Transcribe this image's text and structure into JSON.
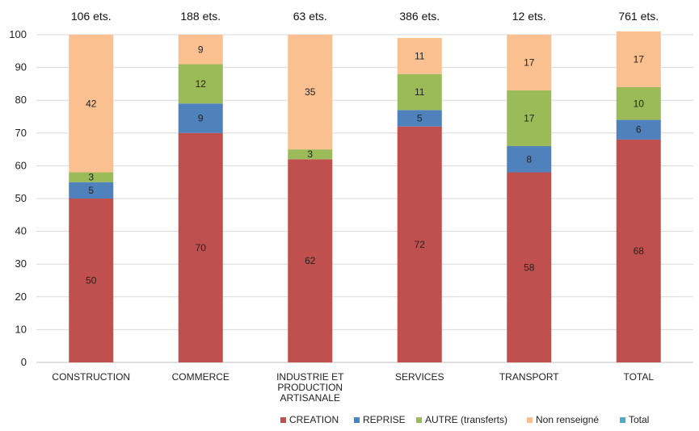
{
  "chart_data": {
    "type": "bar",
    "stacked": true,
    "categories": [
      [
        "CONSTRUCTION"
      ],
      [
        "COMMERCE"
      ],
      [
        "INDUSTRIE ET",
        "PRODUCTION",
        "ARTISANALE"
      ],
      [
        "SERVICES"
      ],
      [
        "TRANSPORT"
      ],
      [
        "TOTAL"
      ]
    ],
    "counts": [
      "106 ets.",
      "188 ets.",
      "63 ets.",
      "386 ets.",
      "12 ets.",
      "761 ets."
    ],
    "series": [
      {
        "name": "CREATION",
        "color": "#C0504D",
        "values": [
          50,
          70,
          62,
          72,
          58,
          68
        ],
        "labels": [
          "50",
          "70",
          "62",
          "72",
          "58",
          "68"
        ]
      },
      {
        "name": "REPRISE",
        "color": "#4F81BD",
        "values": [
          5,
          9,
          0,
          5,
          8,
          6
        ],
        "labels": [
          "5",
          "9",
          "",
          "5",
          "8",
          "6"
        ]
      },
      {
        "name": "AUTRE (transferts)",
        "color": "#9BBB59",
        "values": [
          3,
          12,
          3,
          11,
          17,
          10
        ],
        "labels": [
          "3",
          "12",
          "3",
          "11",
          "17",
          "10"
        ]
      },
      {
        "name": "Non renseigné",
        "color": "#FAC090",
        "values": [
          42,
          9,
          35,
          11,
          17,
          17
        ],
        "labels": [
          "42",
          "9",
          "35",
          "11",
          "17",
          "17"
        ]
      },
      {
        "name": "Total",
        "color": "#4BACC6",
        "values": [
          0,
          0,
          0,
          0,
          0,
          0
        ],
        "labels": [
          "",
          "",
          "",
          "",
          "",
          ""
        ]
      }
    ],
    "ylim": [
      0,
      100
    ],
    "yticks": [
      0,
      10,
      20,
      30,
      40,
      50,
      60,
      70,
      80,
      90,
      100
    ],
    "grid": true,
    "legend_position": "bottom-right"
  }
}
